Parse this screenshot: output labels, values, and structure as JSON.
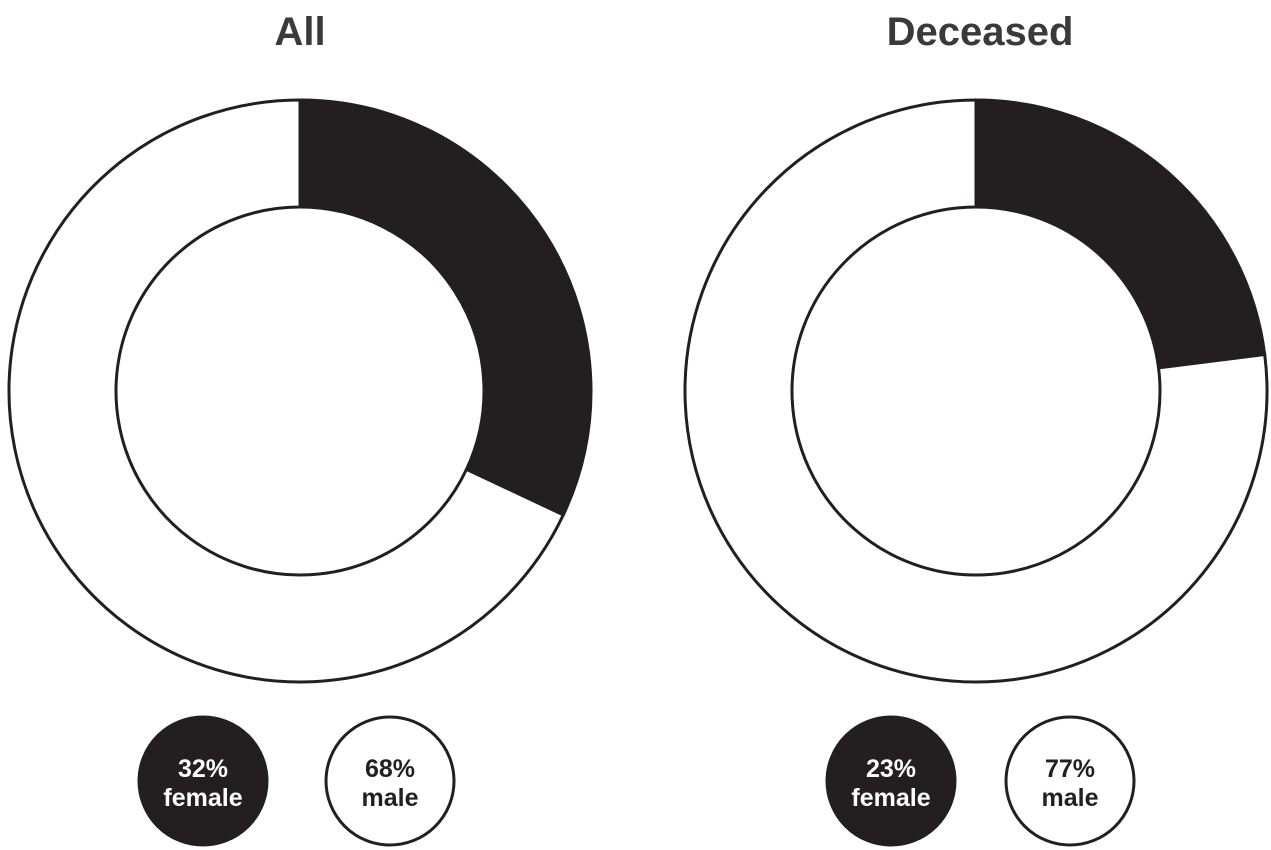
{
  "colors": {
    "female": "#231f20",
    "male": "#ffffff",
    "stroke": "#231f20",
    "title": "#3a3a3a"
  },
  "chart_data": [
    {
      "type": "pie",
      "variant": "donut",
      "title": "All",
      "slices": [
        {
          "label": "female",
          "value": 32,
          "display_pct": "32%",
          "color": "#231f20"
        },
        {
          "label": "male",
          "value": 68,
          "display_pct": "68%",
          "color": "#ffffff"
        }
      ],
      "legend_placement": "bottom"
    },
    {
      "type": "pie",
      "variant": "donut",
      "title": "Deceased",
      "slices": [
        {
          "label": "female",
          "value": 23,
          "display_pct": "23%",
          "color": "#231f20"
        },
        {
          "label": "male",
          "value": 77,
          "display_pct": "77%",
          "color": "#ffffff"
        }
      ],
      "legend_placement": "bottom"
    }
  ]
}
